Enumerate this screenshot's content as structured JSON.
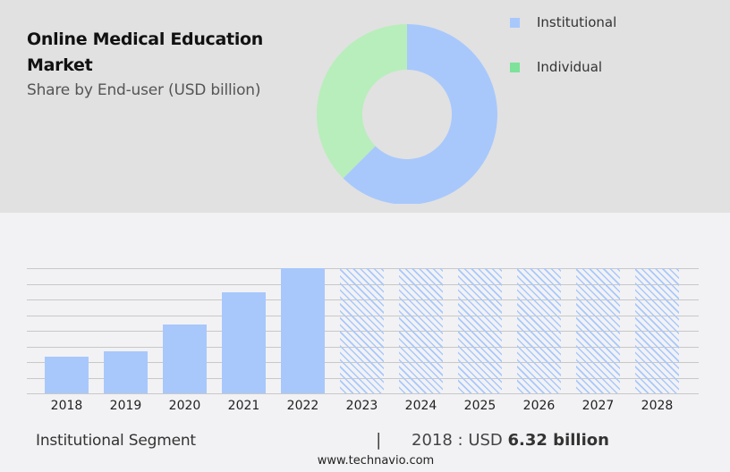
{
  "header": {
    "title_line1": "Online Medical Education",
    "title_line2": "Market",
    "subtitle": "Share by End-user (USD billion)"
  },
  "legend": [
    {
      "label": "Institutional",
      "color": "#a8c8fc"
    },
    {
      "label": "Individual",
      "color": "#7ee29a"
    }
  ],
  "colors": {
    "institutional": "#a8c8fc",
    "individual_slice": "#b8eebb",
    "individual_legend": "#7ee29a",
    "top_background": "#e1e1e1",
    "bottom_background": "#f2f2f4",
    "gridline": "#c8c8c8"
  },
  "footer": {
    "segment_label": "Institutional Segment",
    "separator": "|",
    "value_prefix": "2018 : USD ",
    "value_bold": "6.32 billion",
    "website": "www.technavio.com"
  },
  "chart_data": [
    {
      "type": "pie",
      "subtype": "donut",
      "title": "Online Medical Education Market",
      "subtitle": "Share by End-user (USD billion)",
      "categories": [
        "Institutional",
        "Individual"
      ],
      "values": [
        62.5,
        37.5
      ],
      "unit": "percent share (estimated)",
      "legend_position": "right"
    },
    {
      "type": "bar",
      "title": "Institutional Segment",
      "categories": [
        "2018",
        "2019",
        "2020",
        "2021",
        "2022",
        "2023",
        "2024",
        "2025",
        "2026",
        "2027",
        "2028"
      ],
      "values": [
        6.32,
        7.24,
        11.87,
        17.42,
        21.58,
        null,
        null,
        null,
        null,
        null,
        null
      ],
      "forecast_categories": [
        "2023",
        "2024",
        "2025",
        "2026",
        "2027",
        "2028"
      ],
      "forecast_style": "hatched, full height (values not disclosed)",
      "ylabel": "USD billion",
      "xlabel": "",
      "ylim": [
        0,
        21.58
      ],
      "grid": true,
      "gridlines": 9,
      "annotation": "2018 : USD 6.32 billion"
    }
  ]
}
